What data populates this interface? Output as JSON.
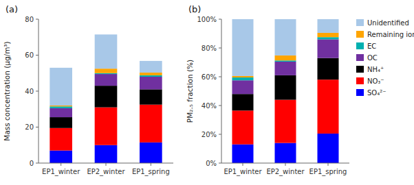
{
  "chart_data": [
    {
      "type": "bar",
      "stacked": true,
      "grid": false,
      "title": "(a)",
      "categories": [
        "EP1_winter",
        "EP2_winter",
        "EP1_spring"
      ],
      "y_label": "Mass concentration (μg/m³)",
      "ylim": [
        0,
        80
      ],
      "yticks": [
        0,
        20,
        40,
        60,
        80
      ],
      "series": [
        {
          "color": "#0000FF",
          "values": [
            7.0,
            10.0,
            11.5
          ]
        },
        {
          "color": "#FF0000",
          "values": [
            12.5,
            21.0,
            21.0
          ]
        },
        {
          "color": "#000000",
          "values": [
            6.0,
            12.0,
            8.5
          ]
        },
        {
          "color": "#7030A0",
          "values": [
            5.0,
            6.5,
            7.0
          ]
        },
        {
          "color": "#00B0B0",
          "values": [
            1.0,
            0.5,
            0.8
          ]
        },
        {
          "color": "#FFA500",
          "values": [
            0.5,
            2.5,
            1.5
          ]
        },
        {
          "color": "#A8C8E8",
          "values": [
            21.0,
            19.0,
            6.5
          ]
        }
      ]
    },
    {
      "type": "bar",
      "stacked": true,
      "grid": false,
      "title": "(b)",
      "legend": "right",
      "categories": [
        "EP1_winter",
        "EP2_winter",
        "EP1_spring"
      ],
      "y_label": "PM₂.₅ fraction (%)",
      "ylim": [
        0,
        100
      ],
      "yticks": [
        {
          "value": 0,
          "label": "0%"
        },
        {
          "value": 20,
          "label": "20%"
        },
        {
          "value": 40,
          "label": "40%"
        },
        {
          "value": 60,
          "label": "60%"
        },
        {
          "value": 80,
          "label": "80%"
        },
        {
          "value": 100,
          "label": "100%"
        }
      ],
      "series": [
        {
          "name": "SO₄²⁻",
          "color": "#0000FF",
          "values": [
            13.0,
            14.0,
            20.5
          ]
        },
        {
          "name": "NO₃⁻",
          "color": "#FF0000",
          "values": [
            23.5,
            30.0,
            37.5
          ]
        },
        {
          "name": "NH₄⁺",
          "color": "#000000",
          "values": [
            11.5,
            17.0,
            15.0
          ]
        },
        {
          "name": "OC",
          "color": "#7030A0",
          "values": [
            9.5,
            9.5,
            13.0
          ]
        },
        {
          "name": "EC",
          "color": "#00B0B0",
          "values": [
            2.0,
            0.8,
            1.5
          ]
        },
        {
          "name": "Remaining ions",
          "color": "#FFA500",
          "values": [
            1.0,
            3.5,
            3.0
          ]
        },
        {
          "name": "Unidentified",
          "color": "#A8C8E8",
          "values": [
            39.5,
            25.2,
            9.5
          ]
        }
      ]
    }
  ]
}
